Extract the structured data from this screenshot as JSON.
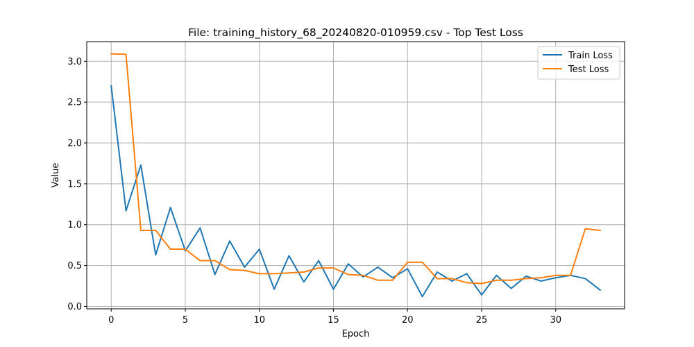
{
  "chart_data": {
    "type": "line",
    "title": "File: training_history_68_20240820-010959.csv - Top Test Loss",
    "xlabel": "Epoch",
    "ylabel": "Value",
    "xlim": [
      -1.65,
      34.65
    ],
    "ylim": [
      -0.03,
      3.24
    ],
    "xticks": [
      0,
      5,
      10,
      15,
      20,
      25,
      30
    ],
    "yticks": [
      0.0,
      0.5,
      1.0,
      1.5,
      2.0,
      2.5,
      3.0
    ],
    "grid": true,
    "legend_position": "top-right",
    "x": [
      0,
      1,
      2,
      3,
      4,
      5,
      6,
      7,
      8,
      9,
      10,
      11,
      12,
      13,
      14,
      15,
      16,
      17,
      18,
      19,
      20,
      21,
      22,
      23,
      24,
      25,
      26,
      27,
      28,
      29,
      30,
      31,
      32,
      33
    ],
    "series": [
      {
        "name": "Train Loss",
        "color": "#1f77b4",
        "values": [
          2.7,
          1.17,
          1.73,
          0.63,
          1.21,
          0.68,
          0.96,
          0.39,
          0.8,
          0.48,
          0.7,
          0.21,
          0.62,
          0.3,
          0.56,
          0.21,
          0.52,
          0.36,
          0.48,
          0.35,
          0.46,
          0.12,
          0.42,
          0.31,
          0.4,
          0.14,
          0.38,
          0.22,
          0.37,
          0.31,
          0.35,
          0.38,
          0.34,
          0.2
        ]
      },
      {
        "name": "Test Loss",
        "color": "#ff7f0e",
        "values": [
          3.09,
          3.085,
          0.93,
          0.93,
          0.7,
          0.7,
          0.56,
          0.56,
          0.45,
          0.44,
          0.4,
          0.4,
          0.41,
          0.42,
          0.47,
          0.47,
          0.39,
          0.38,
          0.32,
          0.32,
          0.54,
          0.54,
          0.34,
          0.34,
          0.29,
          0.28,
          0.32,
          0.32,
          0.34,
          0.35,
          0.38,
          0.38,
          0.95,
          0.93
        ]
      }
    ]
  }
}
